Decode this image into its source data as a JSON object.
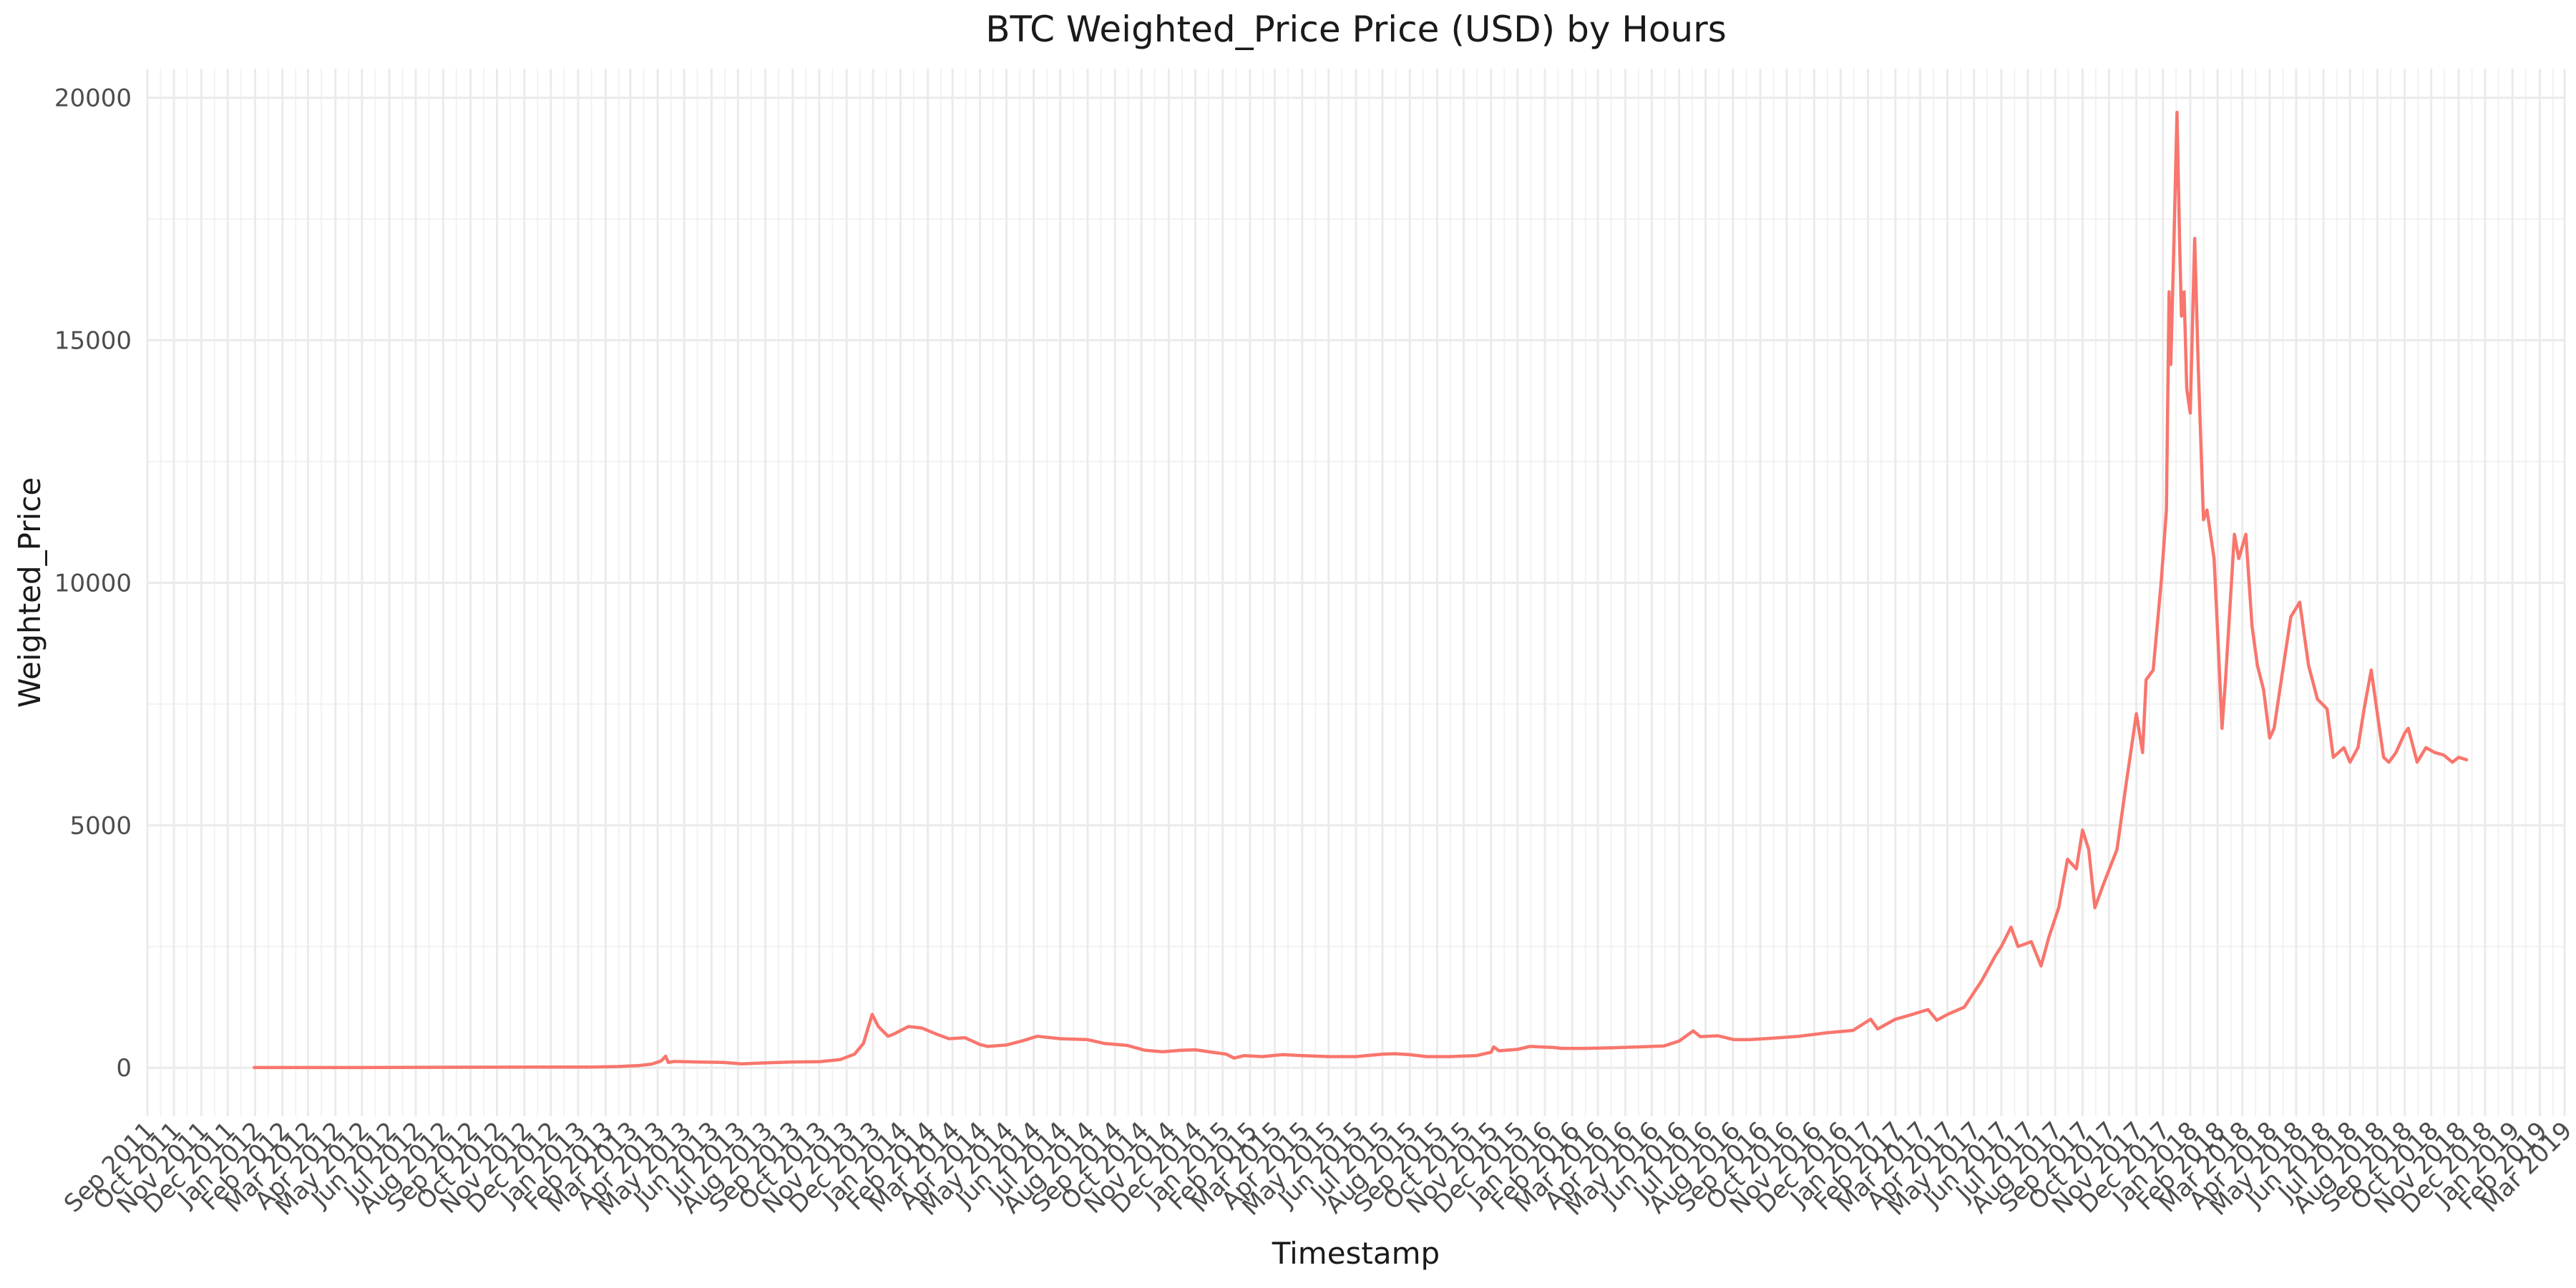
{
  "chart_data": {
    "type": "line",
    "title": "BTC Weighted_Price Price (USD) by Hours",
    "xlabel": "Timestamp",
    "ylabel": "Weighted_Price",
    "x_range": [
      "2011-09-01",
      "2019-03-01"
    ],
    "ylim": [
      -1000,
      20600
    ],
    "y_ticks": [
      0,
      5000,
      10000,
      15000,
      20000
    ],
    "x_ticks": [
      "Sep 2011",
      "Oct 2011",
      "Nov 2011",
      "Dec 2011",
      "Jan 2012",
      "Feb 2012",
      "Mar 2012",
      "Apr 2012",
      "May 2012",
      "Jun 2012",
      "Jul 2012",
      "Aug 2012",
      "Sep 2012",
      "Oct 2012",
      "Nov 2012",
      "Dec 2012",
      "Jan 2013",
      "Feb 2013",
      "Mar 2013",
      "Apr 2013",
      "May 2013",
      "Jun 2013",
      "Jul 2013",
      "Aug 2013",
      "Sep 2013",
      "Oct 2013",
      "Nov 2013",
      "Dec 2013",
      "Jan 2014",
      "Feb 2014",
      "Mar 2014",
      "Apr 2014",
      "May 2014",
      "Jun 2014",
      "Jul 2014",
      "Aug 2014",
      "Sep 2014",
      "Oct 2014",
      "Nov 2014",
      "Dec 2014",
      "Jan 2015",
      "Feb 2015",
      "Mar 2015",
      "Apr 2015",
      "May 2015",
      "Jun 2015",
      "Jul 2015",
      "Aug 2015",
      "Sep 2015",
      "Oct 2015",
      "Nov 2015",
      "Dec 2015",
      "Jan 2016",
      "Feb 2016",
      "Mar 2016",
      "Apr 2016",
      "May 2016",
      "Jun 2016",
      "Jul 2016",
      "Aug 2016",
      "Sep 2016",
      "Oct 2016",
      "Nov 2016",
      "Dec 2016",
      "Jan 2017",
      "Feb 2017",
      "Mar 2017",
      "Apr 2017",
      "May 2017",
      "Jun 2017",
      "Jul 2017",
      "Aug 2017",
      "Sep 2017",
      "Oct 2017",
      "Nov 2017",
      "Dec 2017",
      "Jan 2018",
      "Feb 2018",
      "Mar 2018",
      "Apr 2018",
      "May 2018",
      "Jun 2018",
      "Jul 2018",
      "Aug 2018",
      "Sep 2018",
      "Oct 2018",
      "Nov 2018",
      "Dec 2018",
      "Jan 2019",
      "Feb 2019",
      "Mar 2019"
    ],
    "grid": true,
    "legend": "none",
    "series": [
      {
        "color": "#F8766D",
        "x": [
          "2011-12-31",
          "2012-03-01",
          "2012-06-01",
          "2012-09-01",
          "2012-12-01",
          "2013-01-15",
          "2013-02-15",
          "2013-03-10",
          "2013-03-25",
          "2013-04-05",
          "2013-04-10",
          "2013-04-13",
          "2013-04-20",
          "2013-05-15",
          "2013-06-15",
          "2013-07-05",
          "2013-08-01",
          "2013-09-01",
          "2013-10-01",
          "2013-10-25",
          "2013-11-10",
          "2013-11-20",
          "2013-11-30",
          "2013-12-07",
          "2013-12-18",
          "2013-12-25",
          "2014-01-10",
          "2014-01-25",
          "2014-02-10",
          "2014-02-25",
          "2014-03-15",
          "2014-04-01",
          "2014-04-10",
          "2014-05-01",
          "2014-05-20",
          "2014-06-05",
          "2014-07-01",
          "2014-08-01",
          "2014-08-20",
          "2014-09-15",
          "2014-10-05",
          "2014-10-25",
          "2014-11-15",
          "2014-12-01",
          "2014-12-20",
          "2015-01-05",
          "2015-01-14",
          "2015-01-25",
          "2015-02-15",
          "2015-03-10",
          "2015-04-01",
          "2015-05-01",
          "2015-06-01",
          "2015-07-01",
          "2015-07-15",
          "2015-08-01",
          "2015-08-20",
          "2015-09-15",
          "2015-10-15",
          "2015-11-01",
          "2015-11-04",
          "2015-11-10",
          "2015-12-01",
          "2015-12-15",
          "2016-01-10",
          "2016-01-20",
          "2016-02-15",
          "2016-03-15",
          "2016-04-15",
          "2016-05-15",
          "2016-06-01",
          "2016-06-17",
          "2016-06-25",
          "2016-07-15",
          "2016-08-02",
          "2016-08-20",
          "2016-09-15",
          "2016-10-15",
          "2016-11-15",
          "2016-12-15",
          "2017-01-04",
          "2017-01-12",
          "2017-02-01",
          "2017-02-20",
          "2017-03-10",
          "2017-03-20",
          "2017-04-01",
          "2017-04-20",
          "2017-05-10",
          "2017-05-25",
          "2017-06-01",
          "2017-06-12",
          "2017-06-20",
          "2017-07-05",
          "2017-07-16",
          "2017-07-25",
          "2017-08-05",
          "2017-08-15",
          "2017-08-25",
          "2017-09-01",
          "2017-09-08",
          "2017-09-15",
          "2017-09-25",
          "2017-10-10",
          "2017-10-20",
          "2017-11-01",
          "2017-11-08",
          "2017-11-12",
          "2017-11-20",
          "2017-11-29",
          "2017-12-05",
          "2017-12-08",
          "2017-12-10",
          "2017-12-13",
          "2017-12-17",
          "2017-12-20",
          "2017-12-22",
          "2017-12-25",
          "2017-12-28",
          "2018-01-01",
          "2018-01-06",
          "2018-01-10",
          "2018-01-16",
          "2018-01-20",
          "2018-01-28",
          "2018-02-01",
          "2018-02-06",
          "2018-02-10",
          "2018-02-20",
          "2018-02-25",
          "2018-03-05",
          "2018-03-12",
          "2018-03-18",
          "2018-03-25",
          "2018-04-01",
          "2018-04-06",
          "2018-04-15",
          "2018-04-25",
          "2018-05-05",
          "2018-05-15",
          "2018-05-25",
          "2018-06-05",
          "2018-06-12",
          "2018-06-24",
          "2018-07-01",
          "2018-07-10",
          "2018-07-17",
          "2018-07-25",
          "2018-08-01",
          "2018-08-08",
          "2018-08-14",
          "2018-08-22",
          "2018-09-01",
          "2018-09-05",
          "2018-09-15",
          "2018-09-25",
          "2018-10-05",
          "2018-10-15",
          "2018-10-25",
          "2018-11-01",
          "2018-11-10"
        ],
        "values": [
          5,
          5,
          6,
          10,
          13,
          15,
          25,
          45,
          75,
          140,
          240,
          110,
          130,
          120,
          110,
          80,
          100,
          120,
          125,
          170,
          280,
          500,
          1100,
          850,
          650,
          700,
          850,
          820,
          700,
          600,
          620,
          480,
          440,
          470,
          560,
          650,
          600,
          580,
          500,
          460,
          360,
          330,
          360,
          370,
          320,
          280,
          200,
          250,
          230,
          270,
          250,
          230,
          230,
          280,
          290,
          270,
          230,
          230,
          250,
          320,
          430,
          350,
          380,
          440,
          420,
          400,
          400,
          410,
          430,
          450,
          550,
          760,
          640,
          660,
          580,
          580,
          610,
          650,
          720,
          770,
          1000,
          800,
          1000,
          1100,
          1200,
          980,
          1100,
          1250,
          1800,
          2300,
          2500,
          2900,
          2500,
          2600,
          2100,
          2700,
          3300,
          4300,
          4100,
          4900,
          4500,
          3300,
          3800,
          4500,
          5800,
          7300,
          6500,
          8000,
          8200,
          10000,
          11500,
          16000,
          14500,
          16600,
          19700,
          17000,
          15500,
          16000,
          14000,
          13500,
          17100,
          14500,
          11300,
          11500,
          10500,
          9000,
          7000,
          8000,
          11000,
          10500,
          11000,
          9100,
          8300,
          7800,
          6800,
          7000,
          8100,
          9300,
          9600,
          8300,
          7600,
          7400,
          6400,
          6600,
          6300,
          6600,
          7400,
          8200,
          7300,
          6400,
          6300,
          6500,
          6900,
          7000,
          6300,
          6600,
          6500,
          6450,
          6300,
          6400,
          6350
        ]
      }
    ]
  }
}
